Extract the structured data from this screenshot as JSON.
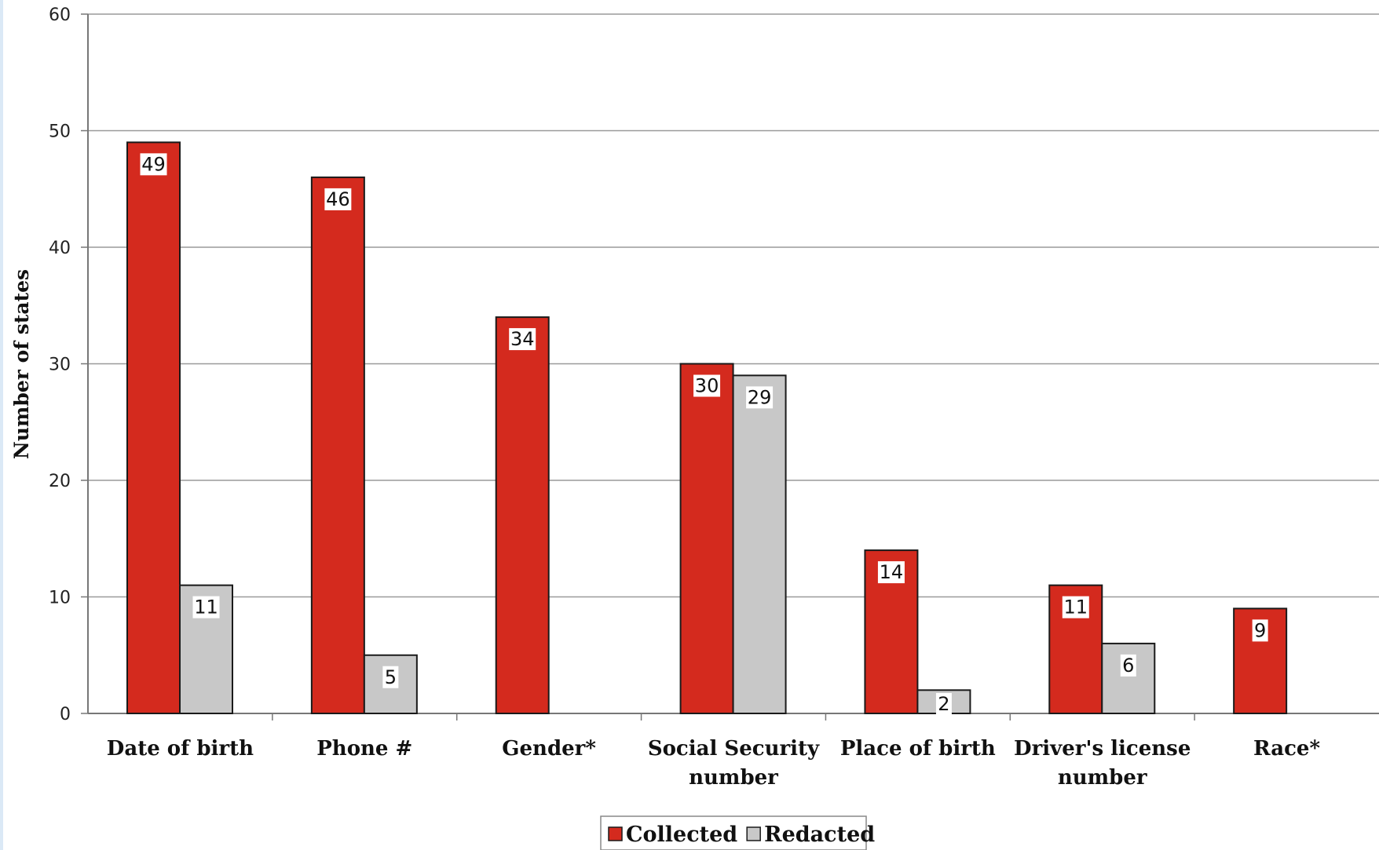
{
  "chart_data": {
    "type": "bar",
    "title": "",
    "xlabel": "",
    "ylabel": "Number of states",
    "ylim": [
      0,
      60
    ],
    "yticks": [
      0,
      10,
      20,
      30,
      40,
      50,
      60
    ],
    "grid": true,
    "legend_position": "bottom-center",
    "categories": [
      [
        "Date of birth"
      ],
      [
        "Phone #"
      ],
      [
        "Gender*"
      ],
      [
        "Social Security",
        "number"
      ],
      [
        "Place of birth"
      ],
      [
        "Driver's license",
        "number"
      ],
      [
        "Race*"
      ]
    ],
    "series": [
      {
        "name": "Collected",
        "color": "#d42a1e",
        "values": [
          49,
          46,
          34,
          30,
          14,
          11,
          9
        ]
      },
      {
        "name": "Redacted",
        "color": "#c8c8c8",
        "values": [
          11,
          5,
          null,
          29,
          2,
          6,
          null
        ]
      }
    ]
  }
}
